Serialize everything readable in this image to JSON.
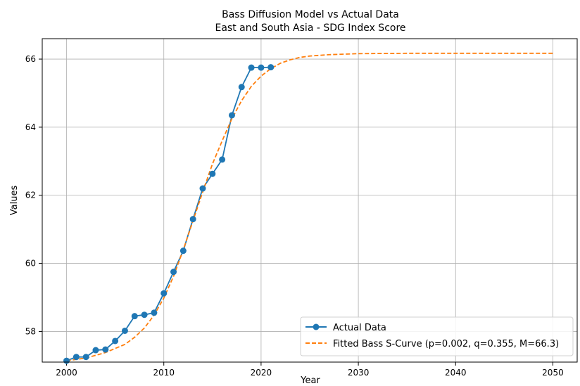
{
  "chart_data": {
    "type": "line",
    "title": "Bass Diffusion Model vs Actual Data",
    "subtitle": "East and South Asia - SDG Index Score",
    "xlabel": "Year",
    "ylabel": "Values",
    "xlim": [
      1997.5,
      2052.5
    ],
    "ylim": [
      57.1,
      66.6
    ],
    "x_ticks": [
      "2000",
      "2010",
      "2020",
      "2030",
      "2040",
      "2050"
    ],
    "y_ticks": [
      "58",
      "60",
      "62",
      "64",
      "66"
    ],
    "grid": true,
    "legend_position": "bottom-right",
    "series": [
      {
        "name": "Actual Data",
        "style": "line-with-circle-markers",
        "color": "#1f77b4",
        "x": [
          2000,
          2001,
          2002,
          2003,
          2004,
          2005,
          2006,
          2007,
          2008,
          2009,
          2010,
          2011,
          2012,
          2013,
          2014,
          2015,
          2016,
          2017,
          2018,
          2019,
          2020,
          2021
        ],
        "y": [
          57.14,
          57.25,
          57.25,
          57.45,
          57.47,
          57.72,
          58.02,
          58.45,
          58.49,
          58.55,
          59.12,
          59.75,
          60.37,
          61.3,
          62.2,
          62.63,
          63.05,
          64.35,
          65.18,
          65.75,
          65.75,
          65.76
        ]
      },
      {
        "name": "Fitted Bass S-Curve (p=0.002, q=0.355, M=66.3)",
        "style": "dashed-line",
        "color": "#ff7f0e",
        "x": [
          2000,
          2002,
          2004,
          2006,
          2007,
          2008,
          2009,
          2010,
          2011,
          2012,
          2013,
          2014,
          2015,
          2016,
          2017,
          2018,
          2019,
          2020,
          2021,
          2022,
          2023,
          2024,
          2025,
          2027,
          2030,
          2035,
          2040,
          2045,
          2050
        ],
        "y": [
          57.14,
          57.22,
          57.38,
          57.62,
          57.83,
          58.1,
          58.48,
          58.98,
          59.62,
          60.4,
          61.25,
          62.1,
          62.92,
          63.6,
          64.25,
          64.78,
          65.2,
          65.5,
          65.72,
          65.88,
          65.98,
          66.05,
          66.09,
          66.13,
          66.16,
          66.17,
          66.17,
          66.17,
          66.17
        ]
      }
    ]
  }
}
